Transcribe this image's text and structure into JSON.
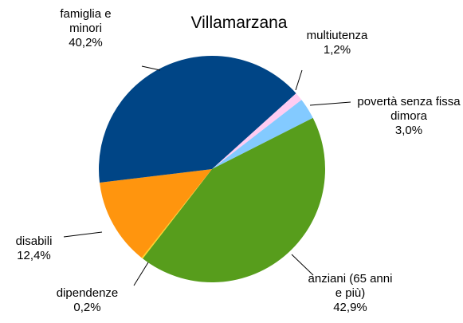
{
  "chart_data": {
    "type": "pie",
    "title": "Villamarzana",
    "categories": [
      "multiutenza",
      "povertà senza fissa dimora",
      "anziani (65 anni e più)",
      "dipendenze",
      "disabili",
      "famiglia e minori"
    ],
    "values": [
      1.2,
      3.0,
      42.9,
      0.2,
      12.4,
      40.2
    ],
    "value_labels": [
      "1,2%",
      "3,0%",
      "42,9%",
      "0,2%",
      "12,4%",
      "40,2%"
    ],
    "colors": [
      "#ffccf2",
      "#83caff",
      "#579d1c",
      "#ffd320",
      "#ff950e",
      "#004586"
    ]
  }
}
